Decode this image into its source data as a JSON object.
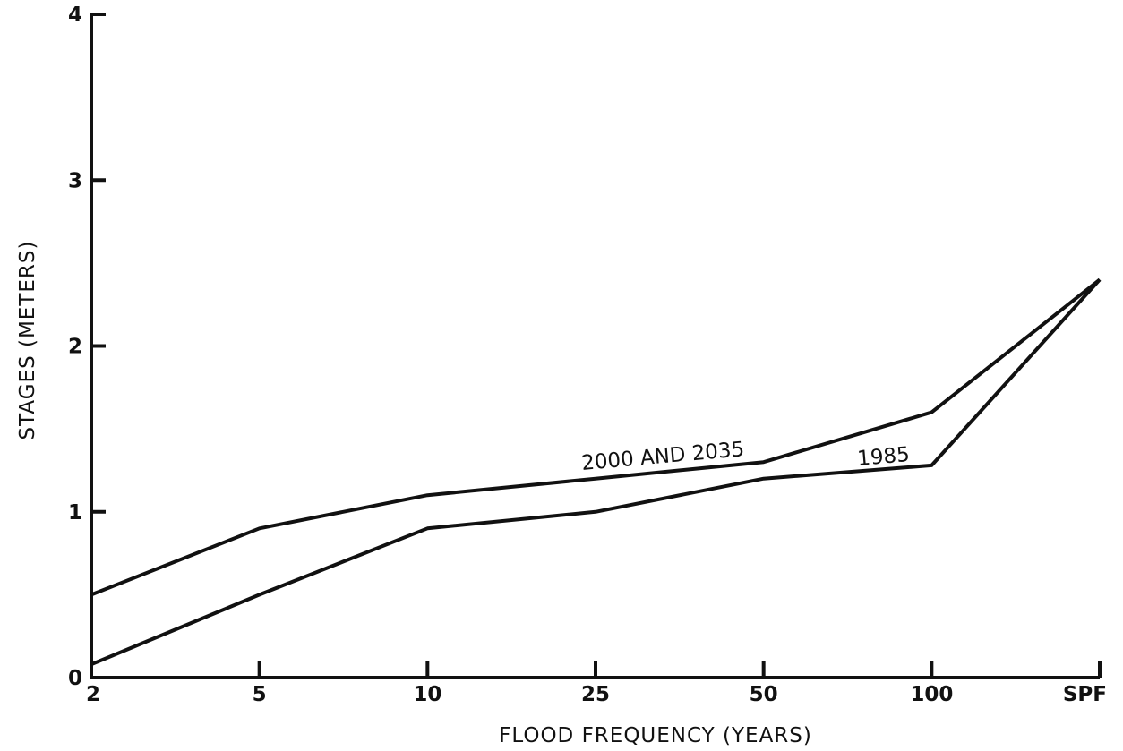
{
  "chart_data": {
    "type": "line",
    "title": "",
    "xlabel": "FLOOD FREQUENCY (YEARS)",
    "ylabel": "STAGES (METERS)",
    "categories": [
      "2",
      "5",
      "10",
      "25",
      "50",
      "100",
      "SPF"
    ],
    "yticks": [
      "0",
      "1",
      "2",
      "3",
      "4"
    ],
    "ylim": [
      0,
      4
    ],
    "grid": false,
    "series": [
      {
        "name": "2000 AND 2035",
        "values": [
          0.5,
          0.9,
          1.1,
          1.2,
          1.3,
          1.6,
          2.4
        ]
      },
      {
        "name": "1985",
        "values": [
          0.08,
          0.5,
          0.9,
          1.0,
          1.2,
          1.28,
          2.4
        ]
      }
    ],
    "line_color": "#111111"
  }
}
